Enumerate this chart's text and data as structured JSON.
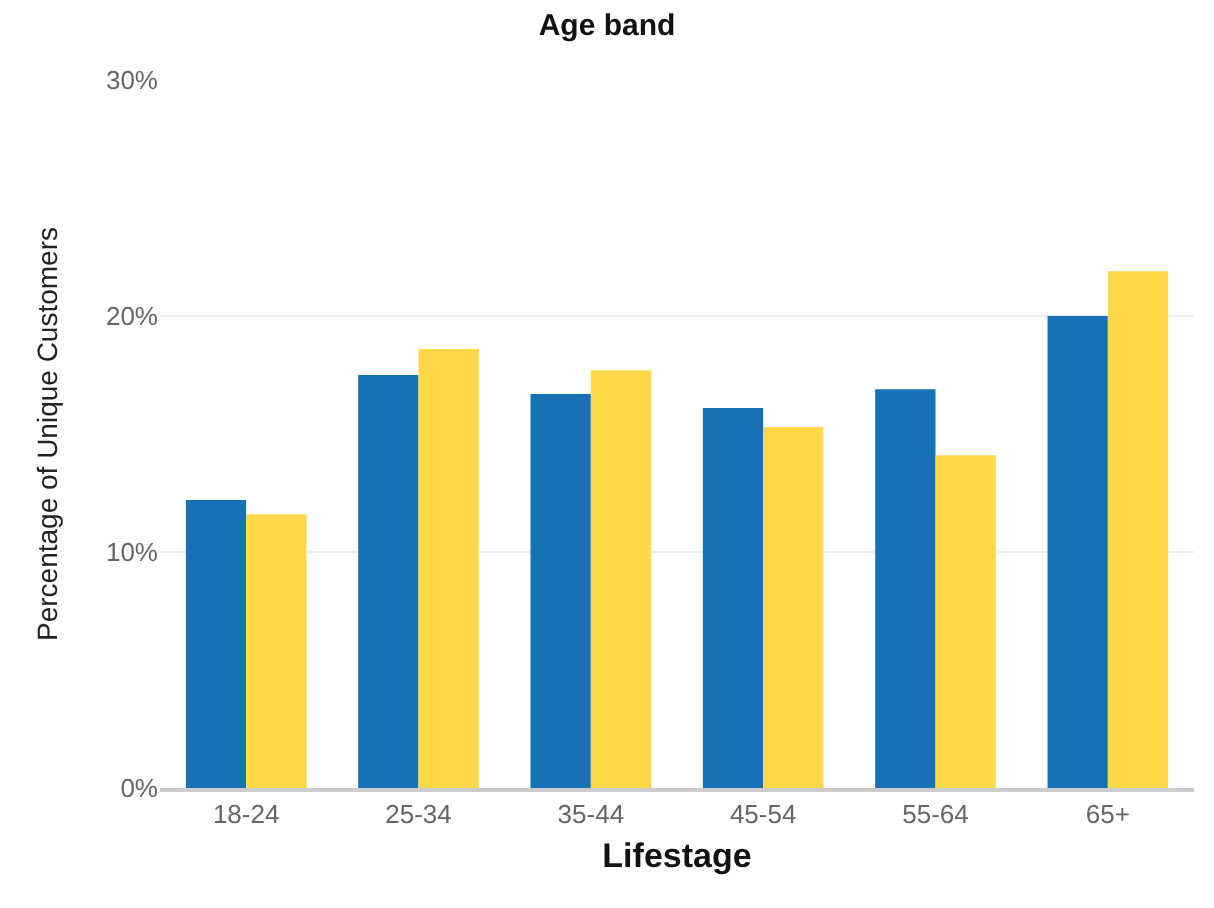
{
  "chart_data": {
    "type": "bar",
    "title": "Age band",
    "xlabel": "Lifestage",
    "ylabel": "Percentage of Unique Customers",
    "categories": [
      "18-24",
      "25-34",
      "35-44",
      "45-54",
      "55-64",
      "65+"
    ],
    "series": [
      {
        "color": "#1472b5",
        "values": [
          12.2,
          17.5,
          16.7,
          16.1,
          16.9,
          20.0
        ]
      },
      {
        "color": "#ffd84a",
        "values": [
          11.6,
          18.6,
          17.7,
          15.3,
          14.1,
          21.9
        ]
      }
    ],
    "ylim": [
      0,
      30
    ],
    "yticks": [
      {
        "value": 0,
        "label": "0%"
      },
      {
        "value": 10,
        "label": "10%"
      },
      {
        "value": 20,
        "label": "20%"
      },
      {
        "value": 30,
        "label": "30%"
      }
    ],
    "grid": "y"
  }
}
